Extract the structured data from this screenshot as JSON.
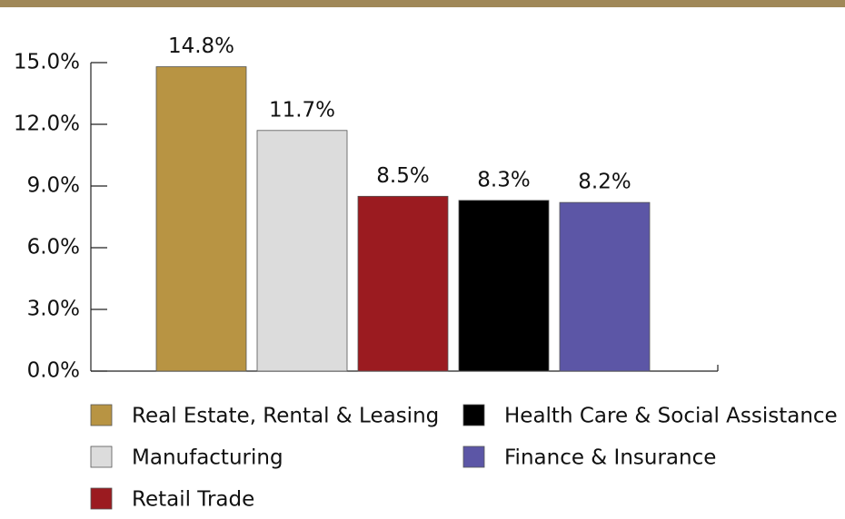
{
  "chart_data": {
    "type": "bar",
    "categories": [
      null
    ],
    "series": [
      {
        "name": "Real Estate, Rental & Leasing",
        "color": "#b89443",
        "values": [
          14.8
        ],
        "value_labels": [
          "14.8%"
        ]
      },
      {
        "name": "Manufacturing",
        "color": "#dcdcdc",
        "values": [
          11.7
        ],
        "value_labels": [
          "11.7%"
        ]
      },
      {
        "name": "Retail Trade",
        "color": "#9b1b20",
        "values": [
          8.5
        ],
        "value_labels": [
          "8.5%"
        ]
      },
      {
        "name": "Health Care & Social Assistance",
        "color": "#000000",
        "values": [
          8.3
        ],
        "value_labels": [
          "8.3%"
        ]
      },
      {
        "name": "Finance & Insurance",
        "color": "#5c56a6",
        "values": [
          8.2
        ],
        "value_labels": [
          "8.2%"
        ]
      }
    ],
    "ylim": [
      0,
      15
    ],
    "yticks": [
      {
        "value": 0,
        "label": "0.0%"
      },
      {
        "value": 3,
        "label": "3.0%"
      },
      {
        "value": 6,
        "label": "6.0%"
      },
      {
        "value": 9,
        "label": "9.0%"
      },
      {
        "value": 12,
        "label": "12.0%"
      },
      {
        "value": 15,
        "label": "15.0%"
      }
    ],
    "legend": "bottom"
  }
}
